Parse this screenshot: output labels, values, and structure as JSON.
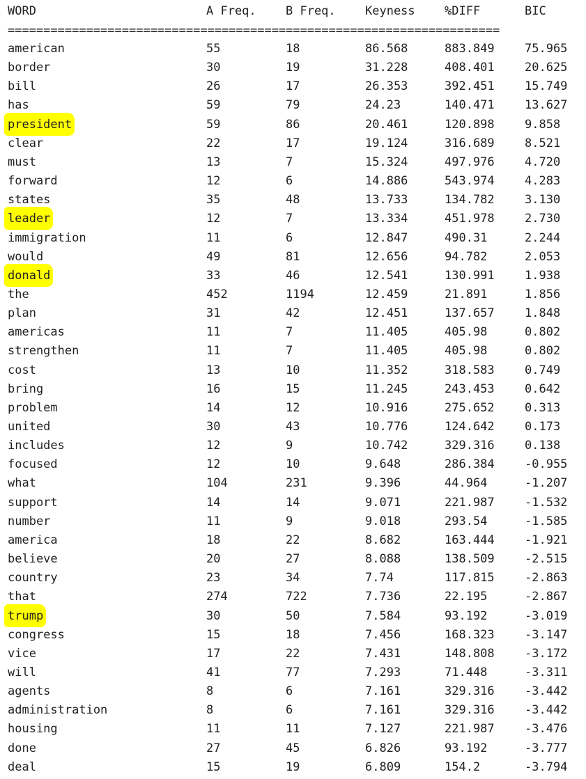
{
  "header": {
    "word": "WORD",
    "a_freq": "A Freq.",
    "b_freq": "B Freq.",
    "keyness": "Keyness",
    "pct_diff": "%DIFF",
    "bic": "BIC"
  },
  "separator": "=====================================================================",
  "colors": {
    "highlight": "#ffff00",
    "text": "#222222",
    "background": "#ffffff"
  },
  "rows": [
    {
      "word": "american",
      "a": "55",
      "b": "18",
      "keyness": "86.568",
      "diff": "883.849",
      "bic": "75.965",
      "highlighted": false
    },
    {
      "word": "border",
      "a": "30",
      "b": "19",
      "keyness": "31.228",
      "diff": "408.401",
      "bic": "20.625",
      "highlighted": false
    },
    {
      "word": "bill",
      "a": "26",
      "b": "17",
      "keyness": "26.353",
      "diff": "392.451",
      "bic": "15.749",
      "highlighted": false
    },
    {
      "word": "has",
      "a": "59",
      "b": "79",
      "keyness": "24.23",
      "diff": "140.471",
      "bic": "13.627",
      "highlighted": false
    },
    {
      "word": "president",
      "a": "59",
      "b": "86",
      "keyness": "20.461",
      "diff": "120.898",
      "bic": "9.858",
      "highlighted": true
    },
    {
      "word": "clear",
      "a": "22",
      "b": "17",
      "keyness": "19.124",
      "diff": "316.689",
      "bic": "8.521",
      "highlighted": false
    },
    {
      "word": "must",
      "a": "13",
      "b": "7",
      "keyness": "15.324",
      "diff": "497.976",
      "bic": "4.720",
      "highlighted": false
    },
    {
      "word": "forward",
      "a": "12",
      "b": "6",
      "keyness": "14.886",
      "diff": "543.974",
      "bic": "4.283",
      "highlighted": false
    },
    {
      "word": "states",
      "a": "35",
      "b": "48",
      "keyness": "13.733",
      "diff": "134.782",
      "bic": "3.130",
      "highlighted": false
    },
    {
      "word": "leader",
      "a": "12",
      "b": "7",
      "keyness": "13.334",
      "diff": "451.978",
      "bic": "2.730",
      "highlighted": true
    },
    {
      "word": "immigration",
      "a": "11",
      "b": "6",
      "keyness": "12.847",
      "diff": "490.31",
      "bic": "2.244",
      "highlighted": false
    },
    {
      "word": "would",
      "a": "49",
      "b": "81",
      "keyness": "12.656",
      "diff": "94.782",
      "bic": "2.053",
      "highlighted": false
    },
    {
      "word": "donald",
      "a": "33",
      "b": "46",
      "keyness": "12.541",
      "diff": "130.991",
      "bic": "1.938",
      "highlighted": true
    },
    {
      "word": "the",
      "a": "452",
      "b": "1194",
      "keyness": "12.459",
      "diff": "21.891",
      "bic": "1.856",
      "highlighted": false
    },
    {
      "word": "plan",
      "a": "31",
      "b": "42",
      "keyness": "12.451",
      "diff": "137.657",
      "bic": "1.848",
      "highlighted": false
    },
    {
      "word": "americas",
      "a": "11",
      "b": "7",
      "keyness": "11.405",
      "diff": "405.98",
      "bic": "0.802",
      "highlighted": false
    },
    {
      "word": "strengthen",
      "a": "11",
      "b": "7",
      "keyness": "11.405",
      "diff": "405.98",
      "bic": "0.802",
      "highlighted": false
    },
    {
      "word": "cost",
      "a": "13",
      "b": "10",
      "keyness": "11.352",
      "diff": "318.583",
      "bic": "0.749",
      "highlighted": false
    },
    {
      "word": "bring",
      "a": "16",
      "b": "15",
      "keyness": "11.245",
      "diff": "243.453",
      "bic": "0.642",
      "highlighted": false
    },
    {
      "word": "problem",
      "a": "14",
      "b": "12",
      "keyness": "10.916",
      "diff": "275.652",
      "bic": "0.313",
      "highlighted": false
    },
    {
      "word": "united",
      "a": "30",
      "b": "43",
      "keyness": "10.776",
      "diff": "124.642",
      "bic": "0.173",
      "highlighted": false
    },
    {
      "word": "includes",
      "a": "12",
      "b": "9",
      "keyness": "10.742",
      "diff": "329.316",
      "bic": "0.138",
      "highlighted": false
    },
    {
      "word": "focused",
      "a": "12",
      "b": "10",
      "keyness": "9.648",
      "diff": "286.384",
      "bic": "-0.955",
      "highlighted": false
    },
    {
      "word": "what",
      "a": "104",
      "b": "231",
      "keyness": "9.396",
      "diff": "44.964",
      "bic": "-1.207",
      "highlighted": false
    },
    {
      "word": "support",
      "a": "14",
      "b": "14",
      "keyness": "9.071",
      "diff": "221.987",
      "bic": "-1.532",
      "highlighted": false
    },
    {
      "word": "number",
      "a": "11",
      "b": "9",
      "keyness": "9.018",
      "diff": "293.54",
      "bic": "-1.585",
      "highlighted": false
    },
    {
      "word": "america",
      "a": "18",
      "b": "22",
      "keyness": "8.682",
      "diff": "163.444",
      "bic": "-1.921",
      "highlighted": false
    },
    {
      "word": "believe",
      "a": "20",
      "b": "27",
      "keyness": "8.088",
      "diff": "138.509",
      "bic": "-2.515",
      "highlighted": false
    },
    {
      "word": "country",
      "a": "23",
      "b": "34",
      "keyness": "7.74",
      "diff": "117.815",
      "bic": "-2.863",
      "highlighted": false
    },
    {
      "word": "that",
      "a": "274",
      "b": "722",
      "keyness": "7.736",
      "diff": "22.195",
      "bic": "-2.867",
      "highlighted": false
    },
    {
      "word": "trump",
      "a": "30",
      "b": "50",
      "keyness": "7.584",
      "diff": "93.192",
      "bic": "-3.019",
      "highlighted": true
    },
    {
      "word": "congress",
      "a": "15",
      "b": "18",
      "keyness": "7.456",
      "diff": "168.323",
      "bic": "-3.147",
      "highlighted": false
    },
    {
      "word": "vice",
      "a": "17",
      "b": "22",
      "keyness": "7.431",
      "diff": "148.808",
      "bic": "-3.172",
      "highlighted": false
    },
    {
      "word": "will",
      "a": "41",
      "b": "77",
      "keyness": "7.293",
      "diff": "71.448",
      "bic": "-3.311",
      "highlighted": false
    },
    {
      "word": "agents",
      "a": "8",
      "b": "6",
      "keyness": "7.161",
      "diff": "329.316",
      "bic": "-3.442",
      "highlighted": false
    },
    {
      "word": "administration",
      "a": "8",
      "b": "6",
      "keyness": "7.161",
      "diff": "329.316",
      "bic": "-3.442",
      "highlighted": false
    },
    {
      "word": "housing",
      "a": "11",
      "b": "11",
      "keyness": "7.127",
      "diff": "221.987",
      "bic": "-3.476",
      "highlighted": false
    },
    {
      "word": "done",
      "a": "27",
      "b": "45",
      "keyness": "6.826",
      "diff": "93.192",
      "bic": "-3.777",
      "highlighted": false
    },
    {
      "word": "deal",
      "a": "15",
      "b": "19",
      "keyness": "6.809",
      "diff": "154.2",
      "bic": "-3.794",
      "highlighted": false
    }
  ]
}
